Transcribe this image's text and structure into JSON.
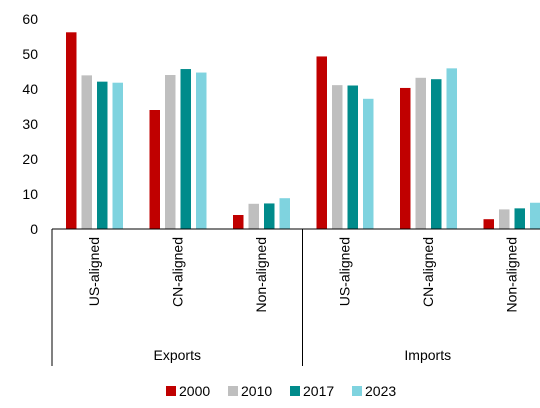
{
  "chart_data": {
    "type": "bar",
    "title": "",
    "xlabel": "",
    "ylabel": "",
    "ylim": [
      0,
      60
    ],
    "yticks": [
      0,
      10,
      20,
      30,
      40,
      50,
      60
    ],
    "groups": [
      {
        "label": "Exports",
        "categories": [
          "US-aligned",
          "CN-aligned",
          "Non-aligned"
        ]
      },
      {
        "label": "Imports",
        "categories": [
          "US-aligned",
          "CN-aligned",
          "Non-aligned"
        ]
      }
    ],
    "series": [
      {
        "name": "2000",
        "color": "#C00000",
        "values": [
          56.2,
          34.0,
          4.0,
          49.3,
          40.3,
          2.8
        ]
      },
      {
        "name": "2010",
        "color": "#BFBFBF",
        "values": [
          43.9,
          44.0,
          7.2,
          41.1,
          43.2,
          5.6
        ]
      },
      {
        "name": "2017",
        "color": "#008B8B",
        "values": [
          42.1,
          45.7,
          7.3,
          41.0,
          42.8,
          5.9
        ]
      },
      {
        "name": "2023",
        "color": "#7FD3DF",
        "values": [
          41.8,
          44.7,
          8.8,
          37.2,
          45.9,
          7.5
        ]
      }
    ],
    "legend_position": "bottom",
    "grid": false
  }
}
